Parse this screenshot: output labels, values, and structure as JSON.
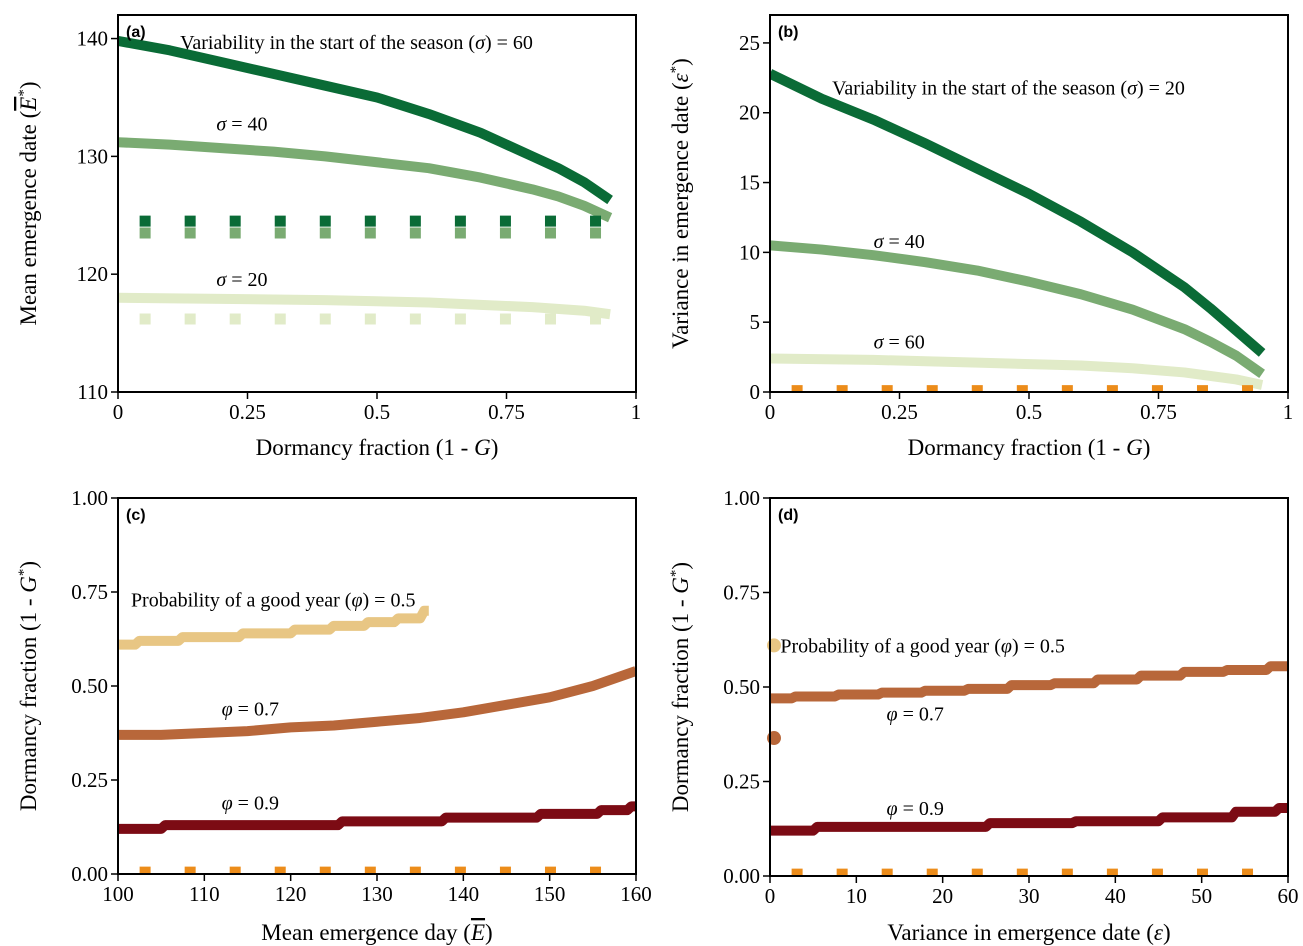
{
  "colors": {
    "dark_green": "#0a6b36",
    "mid_green": "#7aab72",
    "light_green": "#e1ebc8",
    "orange": "#ec8c1a",
    "tan": "#e8c684",
    "brown": "#b8673a",
    "maroon": "#7c0b14"
  },
  "chart_data": [
    {
      "panel": "(a)",
      "type": "line",
      "xlabel": "Dormancy fraction (1 - G)",
      "ylabel": "Mean emergence date (E*)",
      "xlim": [
        0,
        1
      ],
      "ylim": [
        110,
        142
      ],
      "xticks": [
        0,
        0.25,
        0.5,
        0.75,
        1
      ],
      "xtick_labels": [
        "0",
        "0.25",
        "0.5",
        "0.75",
        "1"
      ],
      "yticks": [
        110,
        120,
        130,
        140
      ],
      "ytick_labels": [
        "110",
        "120",
        "130",
        "140"
      ],
      "series": [
        {
          "color_key": "dark_green",
          "style": "solid",
          "x": [
            0,
            0.1,
            0.2,
            0.3,
            0.4,
            0.5,
            0.6,
            0.7,
            0.8,
            0.85,
            0.9,
            0.95
          ],
          "y": [
            139.8,
            139,
            138,
            137,
            136,
            135,
            133.6,
            132,
            130,
            129,
            127.8,
            126.3
          ]
        },
        {
          "color_key": "mid_green",
          "style": "solid",
          "x": [
            0,
            0.1,
            0.2,
            0.3,
            0.4,
            0.5,
            0.6,
            0.7,
            0.8,
            0.85,
            0.9,
            0.95
          ],
          "y": [
            131.2,
            131,
            130.7,
            130.4,
            130,
            129.5,
            129,
            128.2,
            127.2,
            126.6,
            125.8,
            124.8
          ]
        },
        {
          "color_key": "light_green",
          "style": "solid",
          "x": [
            0,
            0.2,
            0.4,
            0.5,
            0.6,
            0.7,
            0.8,
            0.9,
            0.95
          ],
          "y": [
            118,
            117.9,
            117.8,
            117.7,
            117.6,
            117.4,
            117.2,
            116.9,
            116.6
          ]
        },
        {
          "color_key": "dark_green",
          "style": "dotted",
          "x": [
            0,
            1
          ],
          "y": [
            124.5,
            124.5
          ]
        },
        {
          "color_key": "mid_green",
          "style": "dotted",
          "x": [
            0,
            1
          ],
          "y": [
            123.5,
            123.5
          ]
        },
        {
          "color_key": "light_green",
          "style": "dotted",
          "x": [
            0,
            1
          ],
          "y": [
            116.2,
            116.2
          ]
        }
      ],
      "annotations": [
        {
          "text": "Variability in the start of the season (σ) = 60",
          "x": 0.12,
          "y": 139.7
        },
        {
          "text": "σ = 40",
          "x": 0.19,
          "y": 132.8
        },
        {
          "text": "σ = 20",
          "x": 0.19,
          "y": 119.6
        }
      ]
    },
    {
      "panel": "(b)",
      "type": "line",
      "xlabel": "Dormancy fraction (1 - G)",
      "ylabel": "Variance in emergence date (ε*)",
      "xlim": [
        0,
        1
      ],
      "ylim": [
        0,
        27
      ],
      "xticks": [
        0,
        0.25,
        0.5,
        0.75,
        1
      ],
      "xtick_labels": [
        "0",
        "0.25",
        "0.5",
        "0.75",
        "1"
      ],
      "yticks": [
        0,
        5,
        10,
        15,
        20,
        25
      ],
      "ytick_labels": [
        "0",
        "5",
        "10",
        "15",
        "20",
        "25"
      ],
      "series": [
        {
          "color_key": "dark_green",
          "style": "solid",
          "x": [
            0,
            0.1,
            0.2,
            0.3,
            0.4,
            0.5,
            0.6,
            0.7,
            0.8,
            0.85,
            0.9,
            0.95
          ],
          "y": [
            22.8,
            21,
            19.5,
            17.8,
            16,
            14.2,
            12.2,
            10,
            7.5,
            6,
            4.4,
            2.8
          ]
        },
        {
          "color_key": "mid_green",
          "style": "solid",
          "x": [
            0,
            0.1,
            0.2,
            0.3,
            0.4,
            0.5,
            0.6,
            0.7,
            0.8,
            0.85,
            0.9,
            0.95
          ],
          "y": [
            10.5,
            10.2,
            9.8,
            9.3,
            8.7,
            7.9,
            7,
            5.9,
            4.5,
            3.6,
            2.6,
            1.3
          ]
        },
        {
          "color_key": "light_green",
          "style": "solid",
          "x": [
            0,
            0.2,
            0.4,
            0.6,
            0.7,
            0.8,
            0.9,
            0.95
          ],
          "y": [
            2.4,
            2.3,
            2.1,
            1.9,
            1.7,
            1.4,
            0.9,
            0.5
          ]
        },
        {
          "color_key": "orange",
          "style": "dotted",
          "x": [
            0,
            1
          ],
          "y": [
            0.1,
            0.1
          ]
        }
      ],
      "annotations": [
        {
          "text": "Variability in the start of the season (σ) = 20",
          "x": 0.12,
          "y": 21.8
        },
        {
          "text": "σ = 40",
          "x": 0.2,
          "y": 10.8
        },
        {
          "text": "σ = 60",
          "x": 0.2,
          "y": 3.6
        }
      ]
    },
    {
      "panel": "(c)",
      "type": "line",
      "xlabel": "Mean emergence day (E)",
      "ylabel": "Dormancy fraction (1 - G*)",
      "xlim": [
        100,
        160
      ],
      "ylim": [
        0,
        1
      ],
      "xticks": [
        100,
        110,
        120,
        130,
        140,
        150,
        160
      ],
      "xtick_labels": [
        "100",
        "110",
        "120",
        "130",
        "140",
        "150",
        "160"
      ],
      "yticks": [
        0,
        0.25,
        0.5,
        0.75,
        1
      ],
      "ytick_labels": [
        "0.00",
        "0.25",
        "0.50",
        "0.75",
        "1.00"
      ],
      "series": [
        {
          "color_key": "tan",
          "style": "step",
          "x": [
            100,
            104,
            110,
            118,
            122,
            127,
            130,
            134,
            136
          ],
          "y": [
            0.61,
            0.62,
            0.63,
            0.64,
            0.65,
            0.66,
            0.67,
            0.68,
            0.7
          ]
        },
        {
          "color_key": "brown",
          "style": "solid",
          "x": [
            100,
            105,
            110,
            115,
            120,
            125,
            130,
            135,
            140,
            145,
            150,
            155,
            160
          ],
          "y": [
            0.37,
            0.37,
            0.375,
            0.38,
            0.39,
            0.395,
            0.405,
            0.415,
            0.43,
            0.45,
            0.47,
            0.5,
            0.54
          ]
        },
        {
          "color_key": "maroon",
          "style": "step",
          "x": [
            100,
            110,
            120,
            131,
            144,
            153,
            158,
            160
          ],
          "y": [
            0.12,
            0.13,
            0.13,
            0.14,
            0.15,
            0.16,
            0.17,
            0.18
          ]
        },
        {
          "color_key": "orange",
          "style": "dotted",
          "x": [
            100,
            160
          ],
          "y": [
            0.005,
            0.005
          ]
        }
      ],
      "annotations": [
        {
          "text": "Probability of a good year (φ) = 0.5",
          "x": 101.5,
          "y": 0.73
        },
        {
          "text": "φ = 0.7",
          "x": 112,
          "y": 0.44
        },
        {
          "text": "φ = 0.9",
          "x": 112,
          "y": 0.19
        }
      ]
    },
    {
      "panel": "(d)",
      "type": "line",
      "xlabel": "Variance in emergence date (ε)",
      "ylabel": "Dormancy fraction (1 - G*)",
      "xlim": [
        0,
        60
      ],
      "ylim": [
        0,
        1
      ],
      "xticks": [
        0,
        10,
        20,
        30,
        40,
        50,
        60
      ],
      "xtick_labels": [
        "0",
        "10",
        "20",
        "30",
        "40",
        "50",
        "60"
      ],
      "yticks": [
        0,
        0.25,
        0.5,
        0.75,
        1
      ],
      "ytick_labels": [
        "0.00",
        "0.25",
        "0.50",
        "0.75",
        "1.00"
      ],
      "series": [
        {
          "color_key": "brown",
          "style": "step",
          "x": [
            0,
            5,
            10,
            15,
            20,
            25,
            30,
            35,
            40,
            45,
            50,
            55,
            60
          ],
          "y": [
            0.47,
            0.475,
            0.48,
            0.485,
            0.49,
            0.495,
            0.505,
            0.51,
            0.52,
            0.53,
            0.54,
            0.545,
            0.555
          ]
        },
        {
          "color_key": "maroon",
          "style": "step",
          "x": [
            0,
            10,
            20,
            30,
            40,
            50,
            57,
            60
          ],
          "y": [
            0.12,
            0.13,
            0.13,
            0.14,
            0.145,
            0.155,
            0.17,
            0.18
          ]
        },
        {
          "color_key": "orange",
          "style": "dotted",
          "x": [
            0,
            60
          ],
          "y": [
            0.005,
            0.005
          ]
        }
      ],
      "points": [
        {
          "color_key": "tan",
          "x": 0,
          "y": 0.61
        },
        {
          "color_key": "brown",
          "x": 0,
          "y": 0.365
        }
      ],
      "annotations": [
        {
          "text": "Probability of a good year (φ) = 0.5",
          "x": 1.2,
          "y": 0.61
        },
        {
          "text": "φ = 0.7",
          "x": 13.5,
          "y": 0.43
        },
        {
          "text": "φ = 0.9",
          "x": 13.5,
          "y": 0.18
        }
      ]
    }
  ]
}
